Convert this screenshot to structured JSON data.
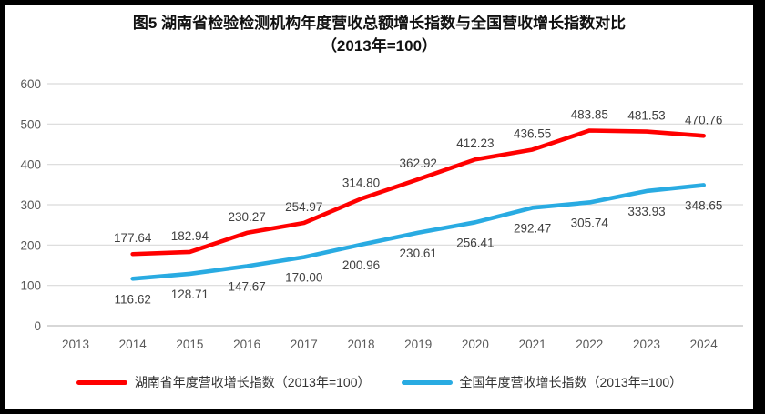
{
  "chart_data": {
    "type": "line",
    "title": "图5 湖南省检验检测机构年度营收总额增长指数与全国营收增长指数对比",
    "subtitle": "（2013年=100）",
    "categories": [
      "2013",
      "2014",
      "2015",
      "2016",
      "2017",
      "2018",
      "2019",
      "2020",
      "2021",
      "2022",
      "2023",
      "2024"
    ],
    "series": [
      {
        "name": "湖南省年度营收增长指数（2013年=100）",
        "color": "#FF0000",
        "label_position": "above",
        "values": [
          null,
          177.64,
          182.94,
          230.27,
          254.97,
          314.8,
          362.92,
          412.23,
          436.55,
          483.85,
          481.53,
          470.76
        ]
      },
      {
        "name": "全国年度营收增长指数（2013年=100）",
        "color": "#29ABE2",
        "label_position": "below",
        "values": [
          null,
          116.62,
          128.71,
          147.67,
          170.0,
          200.96,
          230.61,
          256.41,
          292.47,
          305.74,
          333.93,
          348.65
        ]
      }
    ],
    "xlabel": "",
    "ylabel": "",
    "ylim": [
      0,
      600
    ],
    "ytick_step": 100,
    "grid": true,
    "legend_position": "bottom"
  },
  "styles": {
    "gridline_color": "#D9D9D9",
    "axis_line_color": "#BFBFBF",
    "tick_label_color": "#595959",
    "data_label_color": "#404040",
    "frame_color": "#000000",
    "background_color": "#FFFFFF"
  }
}
